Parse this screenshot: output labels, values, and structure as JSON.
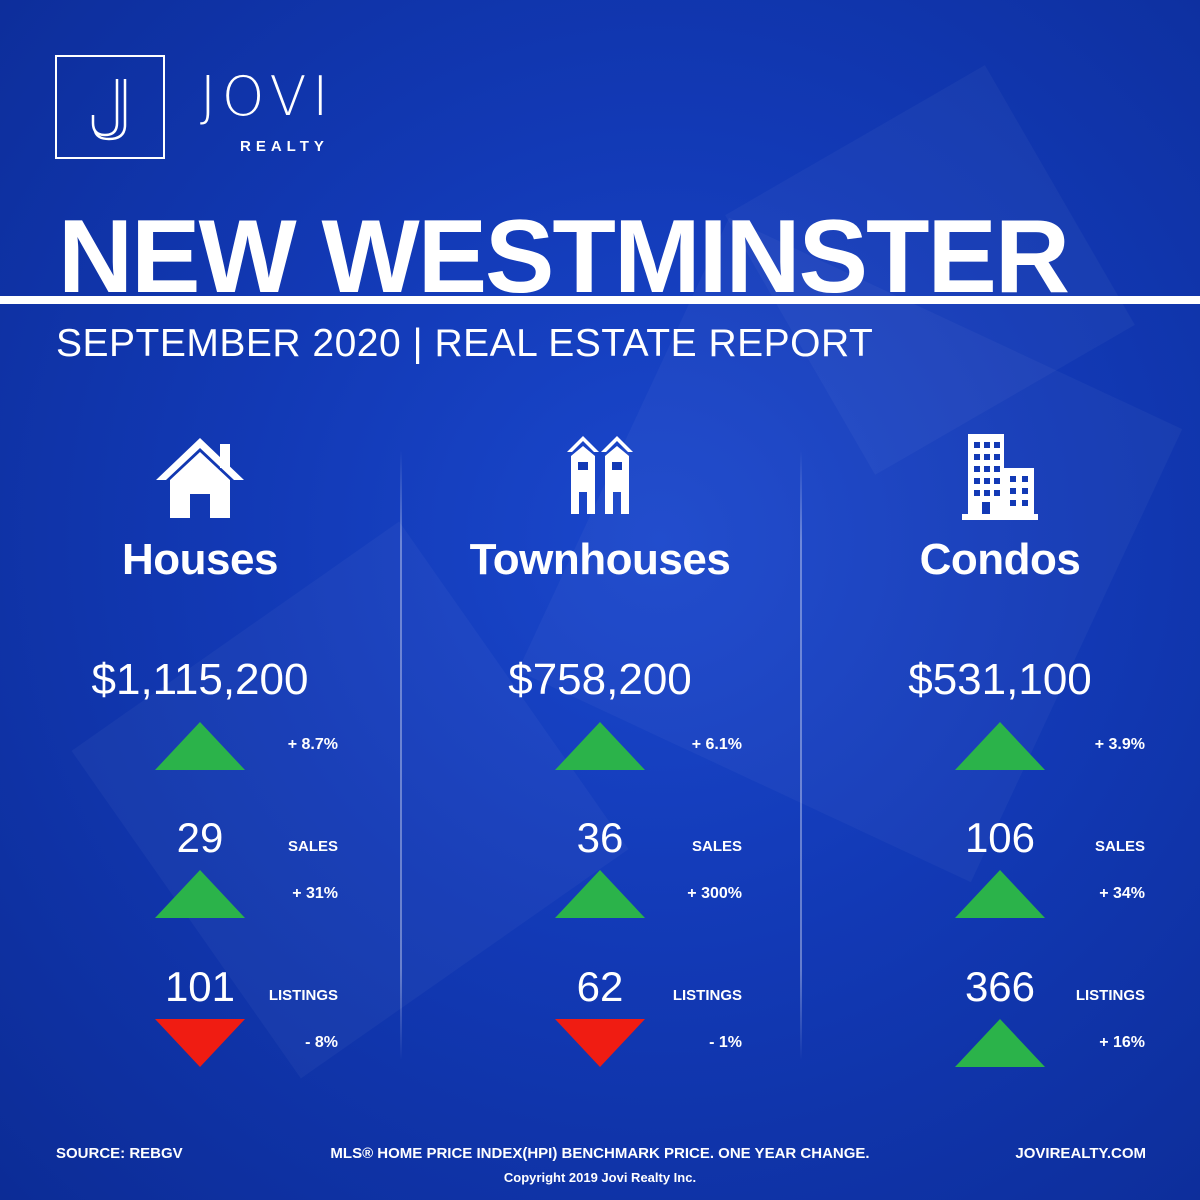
{
  "brand": {
    "name": "JOVI",
    "sub": "REALTY"
  },
  "header": {
    "city": "NEW WESTMINSTER",
    "subtitle": "SEPTEMBER 2020 | REAL ESTATE REPORT"
  },
  "colors": {
    "background": "#1239b5",
    "up": "#2bb34a",
    "down": "#f01c12",
    "text": "#ffffff"
  },
  "columns": [
    {
      "icon": "house-icon",
      "title": "Houses",
      "price": "$1,115,200",
      "price_change": {
        "direction": "up",
        "value": "+ 8.7%"
      },
      "sales": {
        "value": "29",
        "label": "SALES",
        "direction": "up",
        "change": "+ 31%"
      },
      "listings": {
        "value": "101",
        "label": "LISTINGS",
        "direction": "down",
        "change": "- 8%"
      }
    },
    {
      "icon": "townhouse-icon",
      "title": "Townhouses",
      "price": "$758,200",
      "price_change": {
        "direction": "up",
        "value": "+ 6.1%"
      },
      "sales": {
        "value": "36",
        "label": "SALES",
        "direction": "up",
        "change": "+ 300%"
      },
      "listings": {
        "value": "62",
        "label": "LISTINGS",
        "direction": "down",
        "change": "- 1%"
      }
    },
    {
      "icon": "condo-building-icon",
      "title": "Condos",
      "price": "$531,100",
      "price_change": {
        "direction": "up",
        "value": "+ 3.9%"
      },
      "sales": {
        "value": "106",
        "label": "SALES",
        "direction": "up",
        "change": "+ 34%"
      },
      "listings": {
        "value": "366",
        "label": "LISTINGS",
        "direction": "up",
        "change": "+ 16%"
      }
    }
  ],
  "footer": {
    "source": "SOURCE:  REBGV",
    "note": "MLS® HOME PRICE INDEX(HPI) BENCHMARK PRICE. ONE YEAR CHANGE.",
    "website": "JOVIREALTY.COM",
    "copyright": "Copyright 2019 Jovi Realty Inc."
  }
}
